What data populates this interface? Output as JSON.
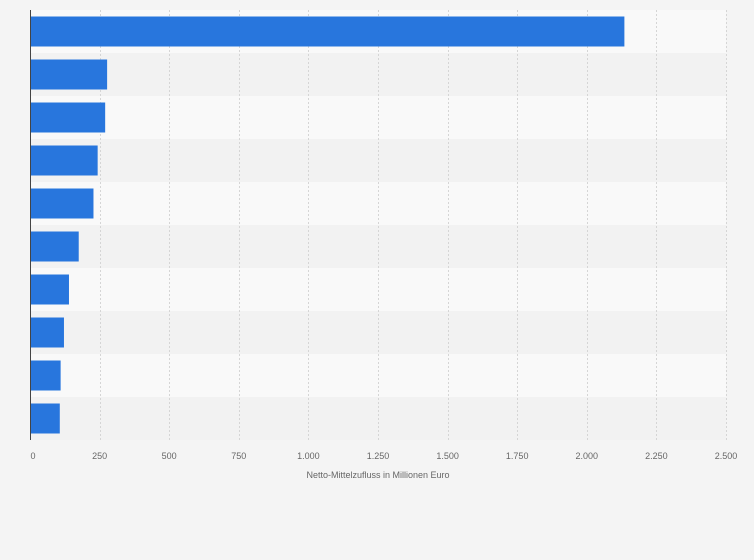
{
  "colors": {
    "bar": "#2876dd",
    "background": "#f4f4f4",
    "band_light": "#f9f9f9",
    "band_dark": "#f2f2f2",
    "grid": "#d5d5d5",
    "axis": "#444444",
    "text": "#666666"
  },
  "chart_data": {
    "type": "bar",
    "orientation": "horizontal",
    "categories": [
      "",
      "",
      "",
      "",
      "",
      "",
      "",
      "",
      "",
      ""
    ],
    "values": [
      2135,
      277,
      270,
      243,
      228,
      175,
      140,
      122,
      110,
      107
    ],
    "xlabel": "Netto-Mittelzufluss in Millionen Euro",
    "ylabel": "",
    "xlim": [
      0,
      2500
    ],
    "ticks": [
      0,
      250,
      500,
      750,
      1000,
      1250,
      1500,
      1750,
      2000,
      2250,
      2500
    ],
    "tick_labels": [
      "0",
      "250",
      "500",
      "750",
      "1.000",
      "1.250",
      "1.500",
      "1.750",
      "2.000",
      "2.250",
      "2.500"
    ],
    "grid": true,
    "legend": "none"
  }
}
